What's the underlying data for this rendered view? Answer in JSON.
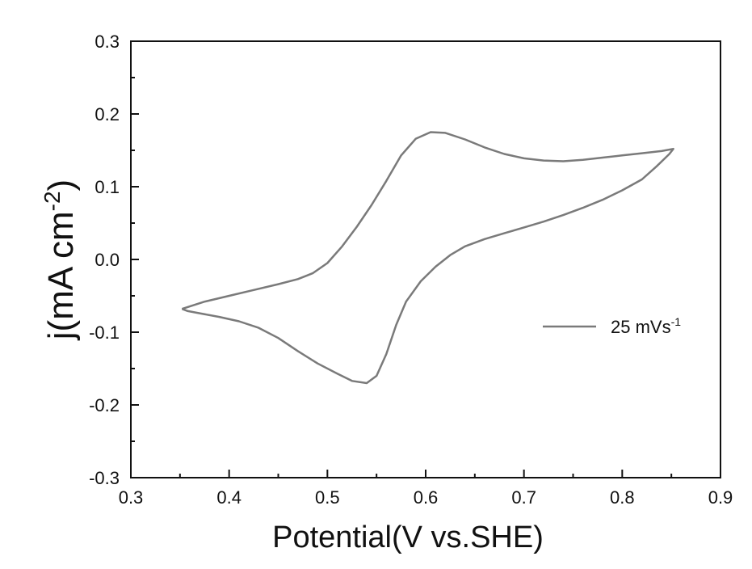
{
  "chart_data": {
    "type": "line",
    "title": "",
    "xlabel": "Potential(V vs.SHE)",
    "ylabel": {
      "main": "j(mA cm",
      "sup": "-2",
      "end": ")"
    },
    "xlim": [
      0.3,
      0.9
    ],
    "ylim": [
      -0.3,
      0.3
    ],
    "x_ticks": [
      "0.3",
      "0.4",
      "0.5",
      "0.6",
      "0.7",
      "0.8",
      "0.9"
    ],
    "y_ticks": [
      "-0.3",
      "-0.2",
      "-0.1",
      "0.0",
      "0.1",
      "0.2",
      "0.3"
    ],
    "grid": false,
    "legend_position": "right",
    "series": [
      {
        "legend": {
          "main": "25 mVs",
          "sup": "-1"
        },
        "color": "#7a7a7a",
        "x": [
          0.352,
          0.375,
          0.4,
          0.425,
          0.45,
          0.47,
          0.485,
          0.5,
          0.515,
          0.53,
          0.545,
          0.56,
          0.575,
          0.59,
          0.605,
          0.62,
          0.64,
          0.66,
          0.68,
          0.7,
          0.72,
          0.74,
          0.76,
          0.78,
          0.8,
          0.82,
          0.84,
          0.852,
          0.848,
          0.835,
          0.82,
          0.8,
          0.78,
          0.76,
          0.74,
          0.72,
          0.7,
          0.68,
          0.66,
          0.64,
          0.625,
          0.61,
          0.595,
          0.58,
          0.57,
          0.56,
          0.55,
          0.54,
          0.525,
          0.51,
          0.49,
          0.47,
          0.45,
          0.43,
          0.41,
          0.39,
          0.37,
          0.358,
          0.352
        ],
        "y": [
          -0.068,
          -0.058,
          -0.05,
          -0.042,
          -0.034,
          -0.027,
          -0.019,
          -0.005,
          0.018,
          0.045,
          0.075,
          0.108,
          0.143,
          0.166,
          0.175,
          0.174,
          0.165,
          0.154,
          0.145,
          0.139,
          0.136,
          0.135,
          0.137,
          0.14,
          0.143,
          0.146,
          0.149,
          0.152,
          0.145,
          0.128,
          0.11,
          0.095,
          0.082,
          0.071,
          0.061,
          0.052,
          0.044,
          0.036,
          0.028,
          0.018,
          0.006,
          -0.01,
          -0.03,
          -0.058,
          -0.09,
          -0.13,
          -0.16,
          -0.17,
          -0.167,
          -0.157,
          -0.143,
          -0.126,
          -0.108,
          -0.094,
          -0.085,
          -0.079,
          -0.074,
          -0.071,
          -0.068
        ]
      }
    ]
  }
}
